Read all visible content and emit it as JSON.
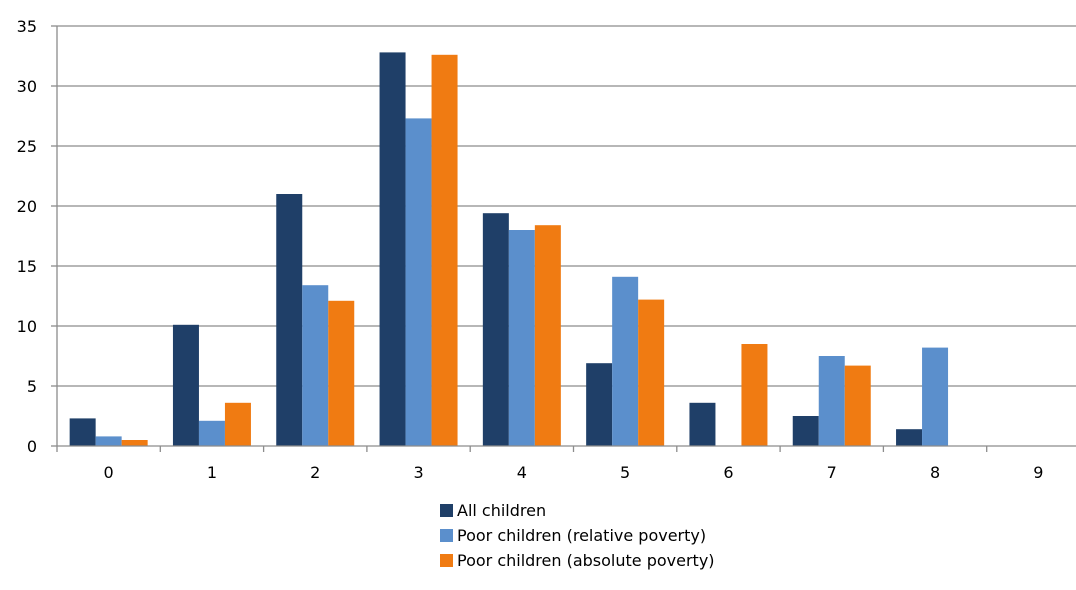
{
  "chart_data": {
    "type": "bar",
    "title": "",
    "xlabel": "",
    "ylabel": "",
    "categories": [
      "0",
      "1",
      "2",
      "3",
      "4",
      "5",
      "6",
      "7",
      "8",
      "9"
    ],
    "ylim": [
      0,
      35
    ],
    "yticks": [
      "0",
      "5",
      "10",
      "15",
      "20",
      "25",
      "30",
      "35"
    ],
    "grid": "horizontal",
    "legend_position": "bottom",
    "series": [
      {
        "name": "All children",
        "color": "#1f3f68",
        "values": [
          2.3,
          10.1,
          21.0,
          32.8,
          19.4,
          6.9,
          3.6,
          2.5,
          1.4,
          0
        ]
      },
      {
        "name": "Poor children (relative poverty)",
        "color": "#5b8fcc",
        "values": [
          0.8,
          2.1,
          13.4,
          27.3,
          18.0,
          14.1,
          0,
          7.5,
          8.2,
          0
        ]
      },
      {
        "name": "Poor children (absolute poverty)",
        "color": "#f07b12",
        "values": [
          0.5,
          3.6,
          12.1,
          32.6,
          18.4,
          12.2,
          8.5,
          6.7,
          0,
          0
        ]
      }
    ]
  }
}
